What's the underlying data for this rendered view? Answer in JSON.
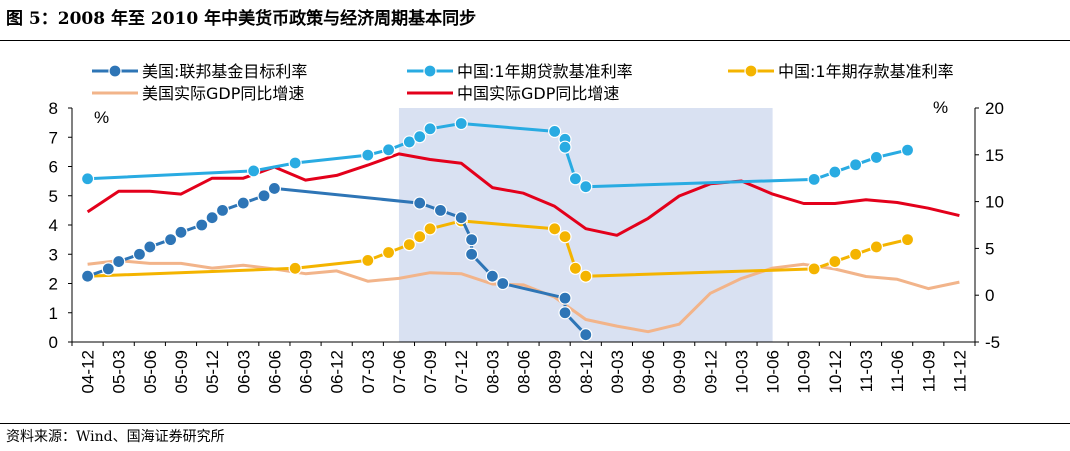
{
  "page": {
    "title": "图 5：2008 年至 2010 年中美货币政策与经济周期基本同步",
    "source": "资料来源：Wind、国海证券研究所"
  },
  "chart_data": {
    "type": "line",
    "unit_left": "%",
    "unit_right": "%",
    "x_categories": [
      "04-12",
      "05-03",
      "05-06",
      "05-09",
      "05-12",
      "06-03",
      "06-06",
      "06-09",
      "06-12",
      "07-03",
      "07-06",
      "07-09",
      "07-12",
      "08-03",
      "08-06",
      "08-09",
      "08-12",
      "09-03",
      "09-06",
      "09-09",
      "09-12",
      "10-03",
      "10-06",
      "10-09",
      "10-12",
      "11-03",
      "11-06",
      "11-09",
      "11-12"
    ],
    "y_left_ticks": [
      0,
      1,
      2,
      3,
      4,
      5,
      6,
      7,
      8
    ],
    "y_right_ticks": [
      -5,
      0,
      5,
      10,
      15,
      20
    ],
    "ylim_left": [
      0,
      8
    ],
    "ylim_right": [
      -5,
      20
    ],
    "shaded_region": {
      "from": "07-06",
      "to": "10-06",
      "color": "#d9e1f2"
    },
    "series": [
      {
        "name": "美国:联邦基金目标利率",
        "axis": "left",
        "color": "#2e75b6",
        "marker": "circle",
        "points": [
          [
            "04-12",
            2.25
          ],
          [
            "05-02",
            2.5
          ],
          [
            "05-03",
            2.75
          ],
          [
            "05-05",
            3.0
          ],
          [
            "05-06",
            3.25
          ],
          [
            "05-08",
            3.5
          ],
          [
            "05-09",
            3.75
          ],
          [
            "05-11",
            4.0
          ],
          [
            "05-12",
            4.25
          ],
          [
            "06-01",
            4.5
          ],
          [
            "06-03",
            4.75
          ],
          [
            "06-05",
            5.0
          ],
          [
            "06-06",
            5.25
          ],
          [
            "07-08",
            4.75
          ],
          [
            "07-10",
            4.5
          ],
          [
            "07-12",
            4.25
          ],
          [
            "08-01",
            3.5
          ],
          [
            "08-01",
            3.0
          ],
          [
            "08-03",
            2.25
          ],
          [
            "08-04",
            2.0
          ],
          [
            "08-10",
            1.5
          ],
          [
            "08-10",
            1.0
          ],
          [
            "08-12",
            0.25
          ]
        ]
      },
      {
        "name": "中国:1年期贷款基准利率",
        "axis": "left",
        "color": "#29abe2",
        "marker": "circle",
        "points": [
          [
            "04-12",
            5.58
          ],
          [
            "06-04",
            5.85
          ],
          [
            "06-08",
            6.12
          ],
          [
            "07-03",
            6.39
          ],
          [
            "07-05",
            6.57
          ],
          [
            "07-07",
            6.84
          ],
          [
            "07-08",
            7.02
          ],
          [
            "07-09",
            7.29
          ],
          [
            "07-12",
            7.47
          ],
          [
            "08-09",
            7.2
          ],
          [
            "08-10",
            6.93
          ],
          [
            "08-10",
            6.66
          ],
          [
            "08-11",
            5.58
          ],
          [
            "08-12",
            5.31
          ],
          [
            "10-10",
            5.56
          ],
          [
            "10-12",
            5.81
          ],
          [
            "11-02",
            6.06
          ],
          [
            "11-04",
            6.31
          ],
          [
            "11-07",
            6.56
          ]
        ]
      },
      {
        "name": "中国:1年期存款基准利率",
        "axis": "left",
        "color": "#f4b400",
        "marker": "circle",
        "points": [
          [
            "04-12",
            2.25
          ],
          [
            "06-08",
            2.52
          ],
          [
            "07-03",
            2.79
          ],
          [
            "07-05",
            3.06
          ],
          [
            "07-07",
            3.33
          ],
          [
            "07-08",
            3.6
          ],
          [
            "07-09",
            3.87
          ],
          [
            "07-12",
            4.14
          ],
          [
            "08-09",
            3.87
          ],
          [
            "08-10",
            3.6
          ],
          [
            "08-11",
            2.52
          ],
          [
            "08-12",
            2.25
          ],
          [
            "10-10",
            2.5
          ],
          [
            "10-12",
            2.75
          ],
          [
            "11-02",
            3.0
          ],
          [
            "11-04",
            3.25
          ],
          [
            "11-07",
            3.5
          ]
        ]
      },
      {
        "name": "美国实际GDP同比增速",
        "axis": "right",
        "color": "#f2b48a",
        "marker": "none",
        "points": [
          [
            "04-12",
            3.3
          ],
          [
            "05-03",
            3.7
          ],
          [
            "05-06",
            3.4
          ],
          [
            "05-09",
            3.4
          ],
          [
            "05-12",
            2.9
          ],
          [
            "06-03",
            3.2
          ],
          [
            "06-06",
            2.8
          ],
          [
            "06-09",
            2.3
          ],
          [
            "06-12",
            2.6
          ],
          [
            "07-03",
            1.5
          ],
          [
            "07-06",
            1.8
          ],
          [
            "07-09",
            2.4
          ],
          [
            "07-12",
            2.3
          ],
          [
            "08-03",
            1.2
          ],
          [
            "08-06",
            1.1
          ],
          [
            "08-09",
            -0.2
          ],
          [
            "08-12",
            -2.6
          ],
          [
            "09-03",
            -3.3
          ],
          [
            "09-06",
            -3.9
          ],
          [
            "09-09",
            -3.1
          ],
          [
            "09-12",
            0.2
          ],
          [
            "10-03",
            1.8
          ],
          [
            "10-06",
            2.9
          ],
          [
            "10-09",
            3.3
          ],
          [
            "10-12",
            2.8
          ],
          [
            "11-03",
            2.0
          ],
          [
            "11-06",
            1.7
          ],
          [
            "11-09",
            0.7
          ],
          [
            "11-12",
            1.4
          ]
        ]
      },
      {
        "name": "中国实际GDP同比增速",
        "axis": "right",
        "color": "#e3001b",
        "marker": "none",
        "points": [
          [
            "04-12",
            8.9
          ],
          [
            "05-03",
            11.1
          ],
          [
            "05-06",
            11.1
          ],
          [
            "05-09",
            10.8
          ],
          [
            "05-12",
            12.5
          ],
          [
            "06-03",
            12.5
          ],
          [
            "06-06",
            13.7
          ],
          [
            "06-09",
            12.3
          ],
          [
            "06-12",
            12.8
          ],
          [
            "07-03",
            13.9
          ],
          [
            "07-06",
            15.1
          ],
          [
            "07-09",
            14.5
          ],
          [
            "07-12",
            14.1
          ],
          [
            "08-03",
            11.5
          ],
          [
            "08-06",
            10.9
          ],
          [
            "08-09",
            9.5
          ],
          [
            "08-12",
            7.1
          ],
          [
            "09-03",
            6.4
          ],
          [
            "09-06",
            8.2
          ],
          [
            "09-09",
            10.6
          ],
          [
            "09-12",
            11.9
          ],
          [
            "10-03",
            12.2
          ],
          [
            "10-06",
            10.8
          ],
          [
            "10-09",
            9.8
          ],
          [
            "10-12",
            9.8
          ],
          [
            "11-03",
            10.2
          ],
          [
            "11-06",
            9.9
          ],
          [
            "11-09",
            9.3
          ],
          [
            "11-12",
            8.5
          ]
        ]
      }
    ],
    "legend": "top"
  }
}
